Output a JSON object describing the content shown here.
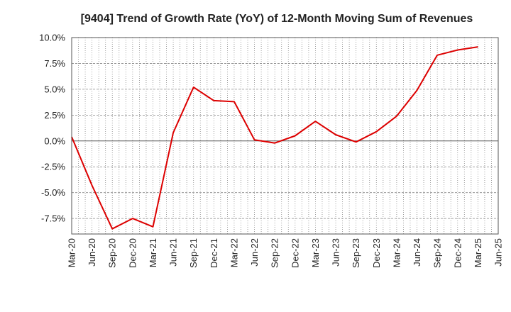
{
  "chart_data": {
    "type": "line",
    "title": "[9404]  Trend of Growth Rate (YoY) of 12-Month Moving Sum of Revenues",
    "xlabel": "",
    "ylabel": "",
    "ylim": [
      -9.0,
      10.0
    ],
    "y_ticks": [
      "10.0%",
      "7.5%",
      "5.0%",
      "2.5%",
      "0.0%",
      "-2.5%",
      "-5.0%",
      "-7.5%"
    ],
    "y_tick_values": [
      10.0,
      7.5,
      5.0,
      2.5,
      0.0,
      -2.5,
      -5.0,
      -7.5
    ],
    "x_ticks": [
      "Mar-20",
      "Jun-20",
      "Sep-20",
      "Dec-20",
      "Mar-21",
      "Jun-21",
      "Sep-21",
      "Dec-21",
      "Mar-22",
      "Jun-22",
      "Sep-22",
      "Dec-22",
      "Mar-23",
      "Jun-23",
      "Sep-23",
      "Dec-23",
      "Mar-24",
      "Jun-24",
      "Sep-24",
      "Dec-24",
      "Mar-25",
      "Jun-25"
    ],
    "grid": true,
    "line_color": "#dd0000",
    "series": [
      {
        "x": [
          "Mar-20",
          "Jun-20",
          "Sep-20",
          "Dec-20",
          "Mar-21",
          "Jun-21",
          "Sep-21",
          "Dec-21",
          "Mar-22",
          "Jun-22",
          "Sep-22",
          "Dec-22",
          "Mar-23",
          "Jun-23",
          "Sep-23",
          "Dec-23",
          "Mar-24",
          "Jun-24",
          "Sep-24",
          "Dec-24",
          "Mar-25"
        ],
        "values": [
          0.4,
          -4.3,
          -8.5,
          -7.5,
          -8.3,
          0.8,
          5.2,
          3.9,
          3.8,
          0.1,
          -0.2,
          0.5,
          1.9,
          0.6,
          -0.1,
          0.9,
          2.4,
          4.9,
          8.3,
          8.8,
          9.1
        ]
      }
    ]
  }
}
